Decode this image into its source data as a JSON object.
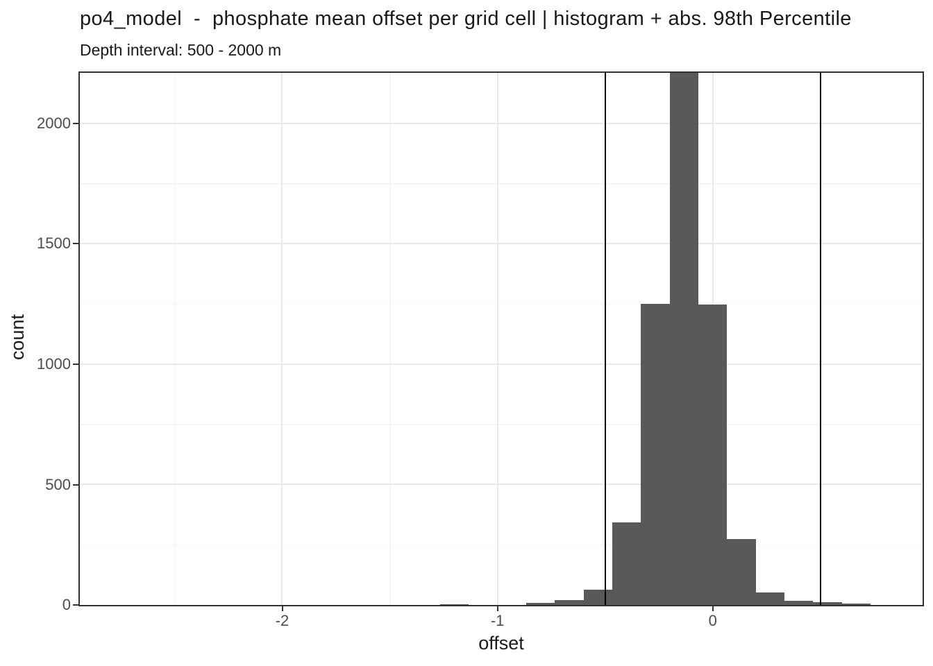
{
  "header": {
    "title": "po4_model  -  phosphate mean offset per grid cell | histogram + abs. 98th Percentile",
    "subtitle": "Depth interval: 500 - 2000 m"
  },
  "chart_data": {
    "type": "bar",
    "subtype": "histogram",
    "title": "po4_model  -  phosphate mean offset per grid cell | histogram + abs. 98th Percentile",
    "subtitle": "Depth interval: 500 - 2000 m",
    "xlabel": "offset",
    "ylabel": "count",
    "xlim": [
      -2.94,
      0.975
    ],
    "ylim": [
      0,
      2210
    ],
    "x_major_ticks": [
      -2,
      -1,
      0
    ],
    "x_tick_labels": [
      "-2",
      "-1",
      "0"
    ],
    "x_minor_gridlines": [
      -2.5,
      -1.5,
      -0.5,
      0.5
    ],
    "y_major_ticks": [
      0,
      500,
      1000,
      1500,
      2000
    ],
    "y_tick_labels": [
      "0",
      "500",
      "1000",
      "1500",
      "2000"
    ],
    "y_minor_gridlines": [
      250,
      750,
      1250,
      1750
    ],
    "binwidth": 0.1333,
    "bins": [
      {
        "center": -1.2,
        "count": 4
      },
      {
        "center": -0.8,
        "count": 10
      },
      {
        "center": -0.6667,
        "count": 20
      },
      {
        "center": -0.5333,
        "count": 63
      },
      {
        "center": -0.4,
        "count": 344
      },
      {
        "center": -0.2667,
        "count": 1252
      },
      {
        "center": -0.1333,
        "count": 2210,
        "clipped_at_top": true
      },
      {
        "center": 0.0,
        "count": 1248
      },
      {
        "center": 0.1333,
        "count": 274
      },
      {
        "center": 0.2667,
        "count": 52
      },
      {
        "center": 0.4,
        "count": 16
      },
      {
        "center": 0.5333,
        "count": 12
      },
      {
        "center": 0.6667,
        "count": 7
      }
    ],
    "percentile_lines": [
      -0.5,
      0.5
    ],
    "grid": true,
    "legend": false,
    "colors": {
      "bar_fill": "#595959",
      "percentile_line": "#000000",
      "grid_major": "#e9e9e9",
      "grid_minor": "#f5f5f5",
      "panel_border": "#333333",
      "tick_label": "#4d4d4d",
      "text": "#1a1a1a",
      "background": "#ffffff"
    }
  }
}
